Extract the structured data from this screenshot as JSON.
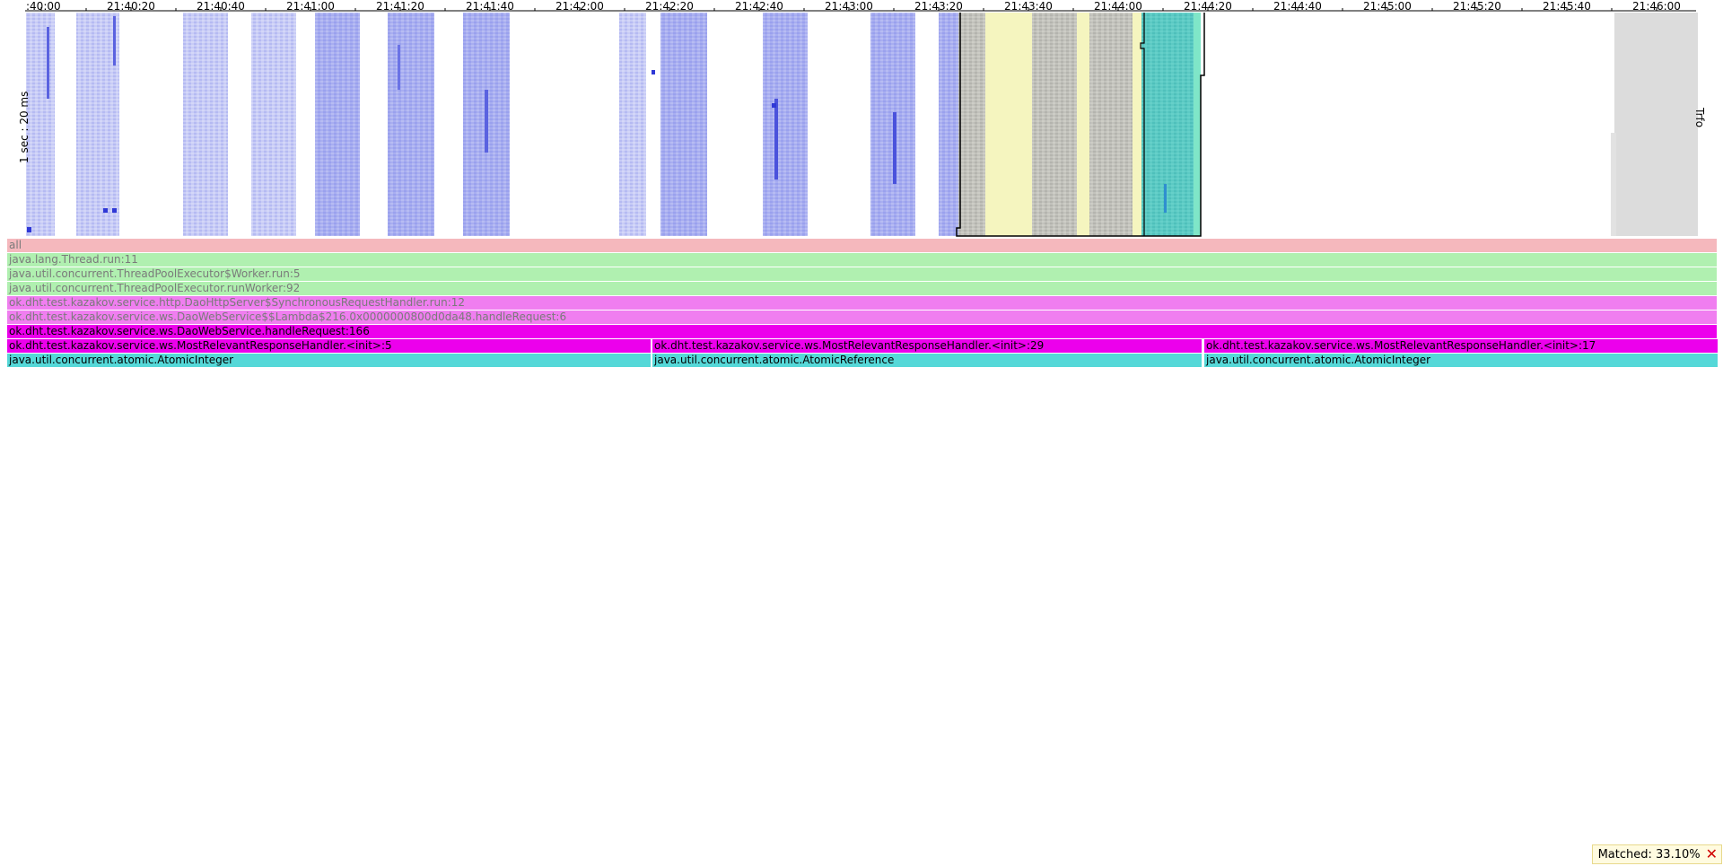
{
  "heatmap": {
    "time_labels": [
      ":40:00",
      "21:40:20",
      "21:40:40",
      "21:41:00",
      "21:41:20",
      "21:41:40",
      "21:42:00",
      "21:42:20",
      "21:42:40",
      "21:43:00",
      "21:43:20",
      "21:43:40",
      "21:44:00",
      "21:44:20",
      "21:44:40",
      "21:45:00",
      "21:45:20",
      "21:45:40",
      "21:46:00"
    ],
    "y_label_left": "1 sec : 20 ms",
    "y_label_right": "Trfo",
    "colors": {
      "sample": "#6f78e8",
      "yellow": "#f5f5bf",
      "gray": "#b8b8b8",
      "teal": "#55c8c0",
      "mint": "#7fe6c8",
      "idle": "#dcdcdc"
    }
  },
  "flame": {
    "rows": [
      [
        {
          "label": "all",
          "color": "#f5b8bd",
          "dim": true,
          "start": 0.0,
          "width": 1.0
        }
      ],
      [
        {
          "label": "java.lang.Thread.run:11",
          "color": "#b0f0b0",
          "dim": true,
          "start": 0.0,
          "width": 1.0
        }
      ],
      [
        {
          "label": "java.util.concurrent.ThreadPoolExecutor$Worker.run:5",
          "color": "#b0f0b0",
          "dim": true,
          "start": 0.0,
          "width": 1.0
        }
      ],
      [
        {
          "label": "java.util.concurrent.ThreadPoolExecutor.runWorker:92",
          "color": "#b0f0b0",
          "dim": true,
          "start": 0.0,
          "width": 1.0
        }
      ],
      [
        {
          "label": "ok.dht.test.kazakov.service.http.DaoHttpServer$SynchronousRequestHandler.run:12",
          "color": "#f07ef0",
          "dim": true,
          "start": 0.0,
          "width": 1.0
        }
      ],
      [
        {
          "label": "ok.dht.test.kazakov.service.ws.DaoWebService$$Lambda$216.0x0000000800d0da48.handleRequest:6",
          "color": "#f07ef0",
          "dim": true,
          "start": 0.0,
          "width": 1.0
        }
      ],
      [
        {
          "label": "ok.dht.test.kazakov.service.ws.DaoWebService.handleRequest:166",
          "color": "#ec00ec",
          "dim": false,
          "start": 0.0,
          "width": 1.0
        }
      ],
      [
        {
          "label": "ok.dht.test.kazakov.service.ws.MostRelevantResponseHandler.<init>:5",
          "color": "#ec00ec",
          "dim": false,
          "start": 0.0,
          "width": 0.3765
        },
        {
          "label": "ok.dht.test.kazakov.service.ws.MostRelevantResponseHandler.<init>:29",
          "color": "#ec00ec",
          "dim": false,
          "start": 0.3775,
          "width": 0.3215
        },
        {
          "label": "ok.dht.test.kazakov.service.ws.MostRelevantResponseHandler.<init>:17",
          "color": "#ec00ec",
          "dim": false,
          "start": 0.7,
          "width": 0.3
        }
      ],
      [
        {
          "label": "java.util.concurrent.atomic.AtomicInteger",
          "color": "#55d8d8",
          "dim": false,
          "start": 0.0,
          "width": 0.3765
        },
        {
          "label": "java.util.concurrent.atomic.AtomicReference",
          "color": "#55d8d8",
          "dim": false,
          "start": 0.3775,
          "width": 0.3215
        },
        {
          "label": "java.util.concurrent.atomic.AtomicInteger",
          "color": "#55d8d8",
          "dim": false,
          "start": 0.7,
          "width": 0.3
        }
      ]
    ]
  },
  "status": {
    "label": "Matched: 33.10%",
    "close_icon": "close-icon"
  }
}
